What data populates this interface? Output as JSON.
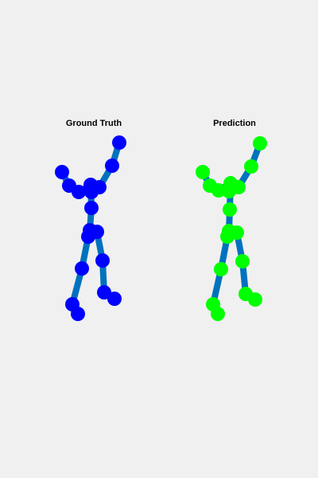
{
  "figure": {
    "bone_color": "#0072bd",
    "panels": [
      {
        "title": "Ground Truth",
        "joint_color": "#0000ff"
      },
      {
        "title": "Prediction",
        "joint_color": "#00ff00"
      }
    ]
  }
}
